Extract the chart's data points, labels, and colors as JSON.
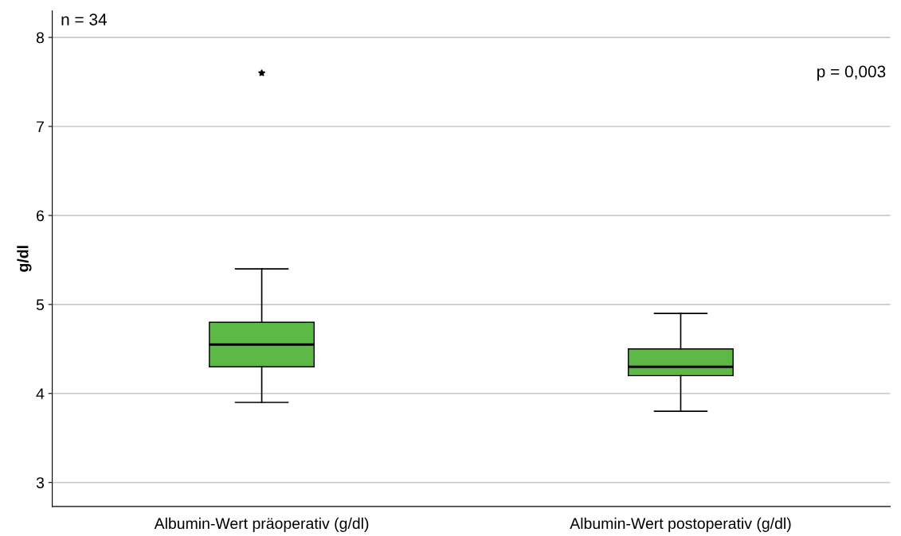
{
  "chart_data": {
    "type": "box",
    "ylabel": "g/dl",
    "categories": [
      "Albumin-Wert präoperativ (g/dl)",
      "Albumin-Wert postoperativ (g/dl)"
    ],
    "boxes": [
      {
        "low": 3.9,
        "q1": 4.3,
        "median": 4.55,
        "q3": 4.8,
        "high": 5.4,
        "outliers": [
          7.6
        ]
      },
      {
        "low": 3.8,
        "q1": 4.2,
        "median": 4.3,
        "q3": 4.5,
        "high": 4.9
      }
    ],
    "color": "#5cb946",
    "marker": "star",
    "ylim": [
      2.73,
      8.3
    ],
    "yticks": [
      3,
      4,
      5,
      6,
      7,
      8
    ],
    "grid": "y",
    "annotations": [
      "n = 34",
      "p = 0,003"
    ]
  }
}
